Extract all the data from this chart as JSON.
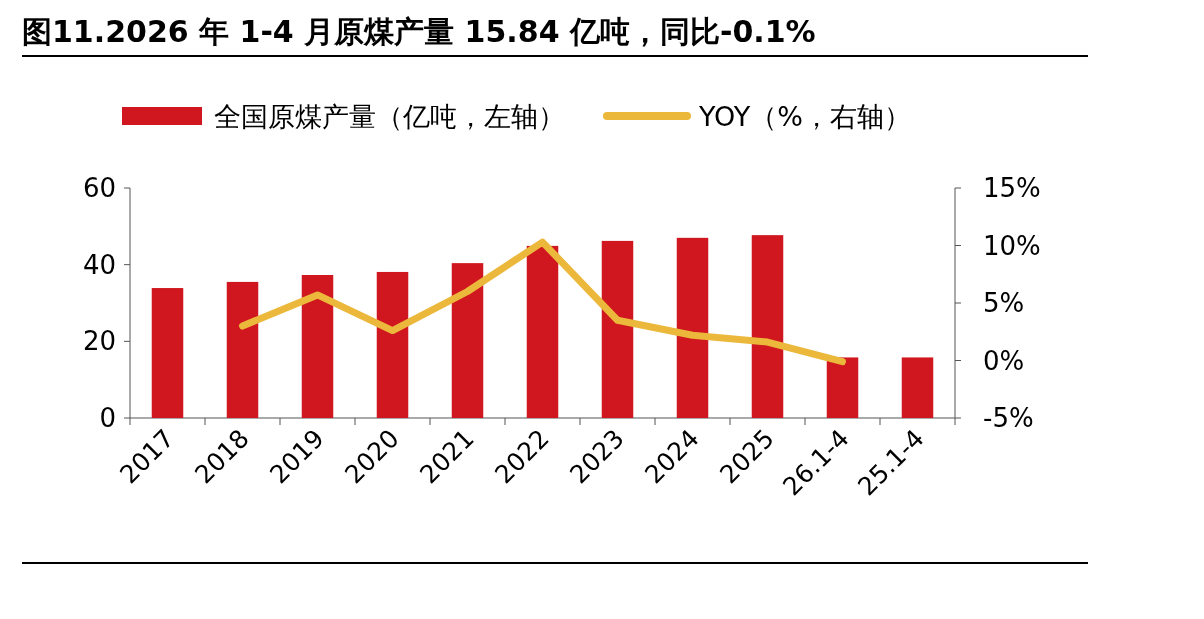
{
  "chart_data": {
    "type": "bar",
    "title": "图11.2026 年 1-4 月原煤产量 15.84 亿吨，同比-0.1%",
    "categories": [
      "2017",
      "2018",
      "2019",
      "2020",
      "2021",
      "2022",
      "2023",
      "2024",
      "2025",
      "26.1-4",
      "25.1-4"
    ],
    "series": [
      {
        "name": "全国原煤产量（亿吨，左轴）",
        "color": "#d0161e",
        "values": [
          33.9,
          35.5,
          37.3,
          38.1,
          40.4,
          44.9,
          46.2,
          47.0,
          47.7,
          15.8,
          15.8
        ]
      },
      {
        "name": "YOY（%，右轴）",
        "type": "line",
        "axis": "y2",
        "color": "#ebb83b",
        "values": [
          null,
          3.0,
          5.7,
          2.6,
          6.0,
          10.3,
          3.5,
          2.2,
          1.6,
          -0.1,
          null
        ]
      }
    ],
    "ylim": [
      0,
      60
    ],
    "yticks": [
      0,
      20,
      40,
      60
    ],
    "y2lim": [
      -5,
      15
    ],
    "y2ticks": [
      {
        "value": -5,
        "label": "-5%"
      },
      {
        "value": 0,
        "label": "0%"
      },
      {
        "value": 5,
        "label": "5%"
      },
      {
        "value": 10,
        "label": "10%"
      },
      {
        "value": 15,
        "label": "15%"
      }
    ],
    "legend": "top",
    "grid": false,
    "marker": "none"
  }
}
